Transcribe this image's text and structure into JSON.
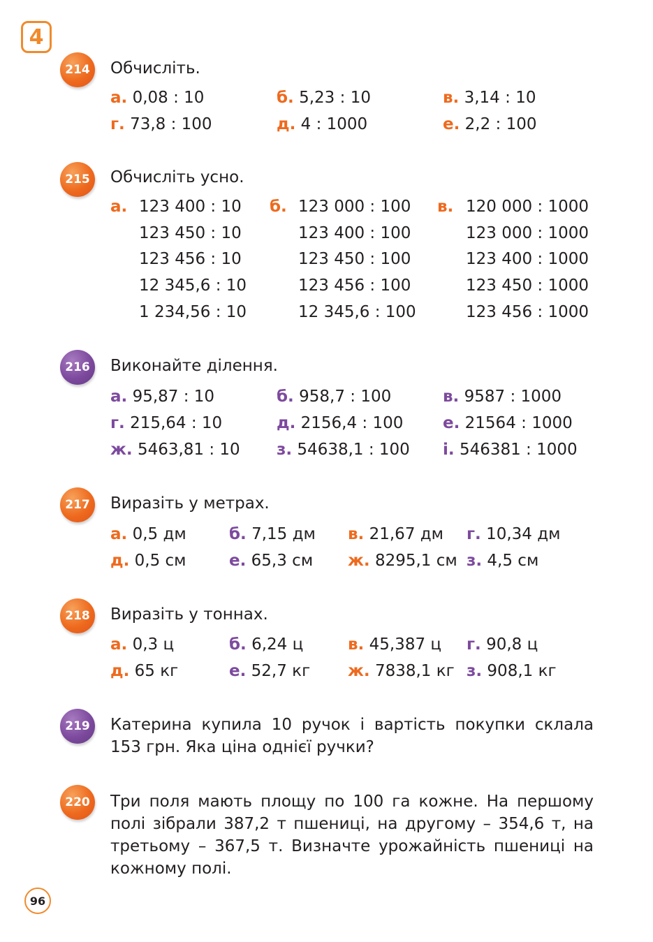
{
  "chapter": "4",
  "page_number": "96",
  "colors": {
    "orange": "#ee6a1e",
    "purple": "#7d4a9e"
  },
  "ex214": {
    "num": "214",
    "title": "Обчисліть.",
    "items": [
      {
        "label": "а.",
        "expr": "0,08 : 10"
      },
      {
        "label": "б.",
        "expr": "5,23 : 10"
      },
      {
        "label": "в.",
        "expr": "3,14 : 10"
      },
      {
        "label": "г.",
        "expr": "73,8 : 100"
      },
      {
        "label": "д.",
        "expr": "4 : 1000"
      },
      {
        "label": "е.",
        "expr": "2,2 : 100"
      }
    ]
  },
  "ex215": {
    "num": "215",
    "title": "Обчисліть усно.",
    "labels": [
      "а.",
      "б.",
      "в."
    ],
    "col_a": [
      "123 400 : 10",
      "123 450 : 10",
      "123 456 : 10",
      "12 345,6 : 10",
      "1 234,56 : 10"
    ],
    "col_b": [
      "123 000 : 100",
      "123 400 : 100",
      "123 450 : 100",
      "123 456 : 100",
      "12 345,6 : 100"
    ],
    "col_c": [
      "120 000 : 1000",
      "123 000 : 1000",
      "123 400 : 1000",
      "123 450 : 1000",
      "123 456 : 1000"
    ]
  },
  "ex216": {
    "num": "216",
    "title": "Виконайте ділення.",
    "items": [
      {
        "label": "а.",
        "expr": "95,87 : 10"
      },
      {
        "label": "б.",
        "expr": "958,7 : 100"
      },
      {
        "label": "в.",
        "expr": "9587 : 1000"
      },
      {
        "label": "г.",
        "expr": "215,64 : 10"
      },
      {
        "label": "д.",
        "expr": "2156,4 : 100"
      },
      {
        "label": "е.",
        "expr": "21564 : 1000"
      },
      {
        "label": "ж.",
        "expr": "5463,81 : 10"
      },
      {
        "label": "з.",
        "expr": "54638,1 : 100"
      },
      {
        "label": "і.",
        "expr": "546381 : 1000"
      }
    ]
  },
  "ex217": {
    "num": "217",
    "title": "Виразіть у метрах.",
    "items": [
      {
        "label": "а.",
        "expr": "0,5 дм"
      },
      {
        "label": "б.",
        "expr": "7,15 дм"
      },
      {
        "label": "в.",
        "expr": "21,67 дм"
      },
      {
        "label": "г.",
        "expr": "10,34 дм"
      },
      {
        "label": "д.",
        "expr": "0,5 см"
      },
      {
        "label": "е.",
        "expr": "65,3 см"
      },
      {
        "label": "ж.",
        "expr": "8295,1 см"
      },
      {
        "label": "з.",
        "expr": "4,5 см"
      }
    ]
  },
  "ex218": {
    "num": "218",
    "title": "Виразіть у тоннах.",
    "items": [
      {
        "label": "а.",
        "expr": "0,3 ц"
      },
      {
        "label": "б.",
        "expr": "6,24 ц"
      },
      {
        "label": "в.",
        "expr": "45,387 ц"
      },
      {
        "label": "г.",
        "expr": "90,8 ц"
      },
      {
        "label": "д.",
        "expr": "65 кг"
      },
      {
        "label": "е.",
        "expr": "52,7 кг"
      },
      {
        "label": "ж.",
        "expr": "7838,1 кг"
      },
      {
        "label": "з.",
        "expr": "908,1 кг"
      }
    ]
  },
  "ex219": {
    "num": "219",
    "text": "Катерина купила 10 ручок і вартість покупки склала 153 грн. Яка ціна однієї ручки?"
  },
  "ex220": {
    "num": "220",
    "text": "Три поля мають площу по 100 га кожне. На першому полі зібрали 387,2 т пшениці, на другому – 354,6 т, на третьому – 367,5 т. Визначте урожайність пшениці на кожному полі."
  }
}
